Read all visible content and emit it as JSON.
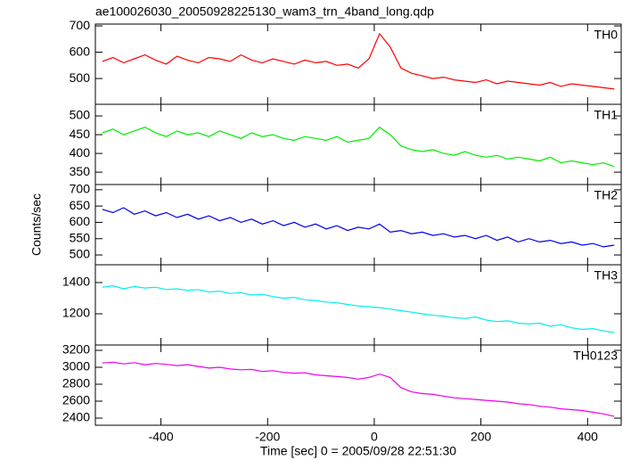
{
  "chart_data": {
    "type": "line",
    "title": "ae100026030_20050928225130_wam3_trn_4band_long.qdp",
    "xlabel": "Time [sec] 0 = 2005/09/28 22:51:30",
    "ylabel": "Counts/sec",
    "xlim": [
      -523,
      463
    ],
    "xticks": [
      -400,
      -200,
      0,
      200,
      400
    ],
    "x": [
      -510,
      -490,
      -470,
      -450,
      -430,
      -410,
      -390,
      -370,
      -350,
      -330,
      -310,
      -290,
      -270,
      -250,
      -230,
      -210,
      -190,
      -170,
      -150,
      -130,
      -110,
      -90,
      -70,
      -50,
      -30,
      -10,
      10,
      30,
      50,
      70,
      90,
      110,
      130,
      150,
      170,
      190,
      210,
      230,
      250,
      270,
      290,
      310,
      330,
      350,
      370,
      390,
      410,
      430,
      450
    ],
    "series": [
      {
        "name": "TH0",
        "color": "#ff0000",
        "ylim": [
          402,
          707
        ],
        "yticks": [
          500,
          600,
          700
        ],
        "values": [
          565,
          580,
          560,
          575,
          590,
          570,
          555,
          585,
          570,
          560,
          580,
          575,
          565,
          590,
          570,
          560,
          575,
          565,
          555,
          570,
          560,
          565,
          550,
          555,
          540,
          575,
          670,
          620,
          540,
          520,
          510,
          500,
          505,
          495,
          490,
          485,
          495,
          480,
          490,
          485,
          480,
          475,
          485,
          470,
          480,
          475,
          470,
          465,
          460
        ]
      },
      {
        "name": "TH1",
        "color": "#00ee00",
        "ylim": [
          317,
          531
        ],
        "yticks": [
          350,
          400,
          450,
          500
        ],
        "values": [
          455,
          465,
          450,
          460,
          470,
          455,
          445,
          460,
          450,
          455,
          445,
          460,
          450,
          440,
          455,
          445,
          450,
          440,
          435,
          445,
          440,
          435,
          445,
          430,
          435,
          440,
          470,
          450,
          420,
          410,
          405,
          410,
          400,
          395,
          405,
          395,
          390,
          395,
          385,
          390,
          385,
          380,
          390,
          375,
          380,
          375,
          370,
          375,
          365
        ]
      },
      {
        "name": "TH2",
        "color": "#0000ee",
        "ylim": [
          470,
          716
        ],
        "yticks": [
          500,
          550,
          600,
          650,
          700
        ],
        "values": [
          640,
          630,
          645,
          625,
          635,
          620,
          630,
          615,
          625,
          610,
          620,
          605,
          615,
          600,
          610,
          595,
          605,
          590,
          600,
          585,
          595,
          580,
          590,
          575,
          585,
          580,
          595,
          570,
          575,
          565,
          570,
          560,
          565,
          555,
          560,
          550,
          560,
          545,
          555,
          540,
          550,
          540,
          545,
          535,
          540,
          530,
          535,
          525,
          530
        ]
      },
      {
        "name": "TH3",
        "color": "#00eeee",
        "ylim": [
          1000,
          1514
        ],
        "yticks": [
          1200,
          1400
        ],
        "values": [
          1370,
          1380,
          1360,
          1375,
          1365,
          1370,
          1355,
          1360,
          1350,
          1355,
          1340,
          1345,
          1330,
          1335,
          1320,
          1325,
          1310,
          1300,
          1305,
          1290,
          1285,
          1275,
          1270,
          1260,
          1250,
          1245,
          1240,
          1230,
          1220,
          1210,
          1200,
          1190,
          1185,
          1175,
          1170,
          1180,
          1160,
          1150,
          1155,
          1140,
          1135,
          1140,
          1120,
          1130,
          1110,
          1100,
          1105,
          1090,
          1080
        ]
      },
      {
        "name": "TH0123",
        "color": "#ee00ee",
        "ylim": [
          2316,
          3263
        ],
        "yticks": [
          2400,
          2600,
          2800,
          3000,
          3200
        ],
        "values": [
          3050,
          3060,
          3040,
          3055,
          3030,
          3045,
          3035,
          3020,
          3030,
          3010,
          2990,
          3000,
          2980,
          2970,
          2975,
          2950,
          2960,
          2940,
          2930,
          2935,
          2910,
          2900,
          2890,
          2880,
          2860,
          2880,
          2920,
          2880,
          2760,
          2710,
          2690,
          2680,
          2660,
          2640,
          2630,
          2620,
          2610,
          2600,
          2590,
          2570,
          2560,
          2540,
          2530,
          2510,
          2500,
          2490,
          2470,
          2450,
          2420
        ]
      }
    ]
  }
}
